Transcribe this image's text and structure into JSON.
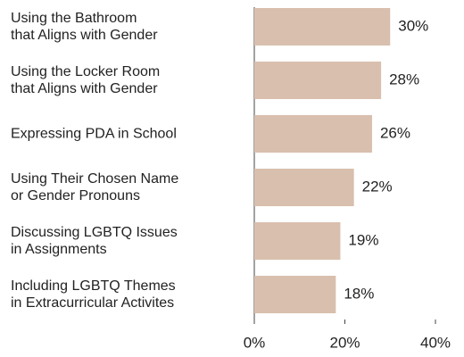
{
  "chart_data": {
    "type": "barh",
    "categories": [
      "Using the Bathroom\nthat Aligns with Gender",
      "Using the Locker Room\nthat Aligns with Gender",
      "Expressing PDA in School",
      "Using Their Chosen Name\nor Gender Pronouns",
      "Discussing LGBTQ Issues\nin Assignments",
      "Including LGBTQ Themes\nin Extracurricular Activites"
    ],
    "values": [
      30,
      28,
      26,
      22,
      19,
      18
    ],
    "value_labels": [
      "30%",
      "28%",
      "26%",
      "22%",
      "19%",
      "18%"
    ],
    "color": "#d9bfae",
    "xlim": [
      0,
      40
    ],
    "xticks": [
      {
        "value": 0,
        "label": "0%"
      },
      {
        "value": 20,
        "label": "20%"
      },
      {
        "value": 40,
        "label": "40%"
      }
    ],
    "grid": false
  }
}
